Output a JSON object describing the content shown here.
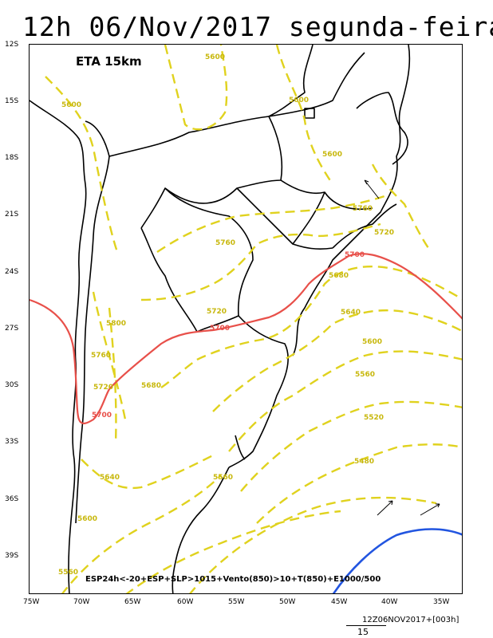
{
  "title": "12h 06/Nov/2017 segunda-feira",
  "model_label": "ETA 15km",
  "lat_ticks": [
    "12S",
    "15S",
    "18S",
    "21S",
    "24S",
    "27S",
    "30S",
    "33S",
    "36S",
    "39S"
  ],
  "lon_ticks": [
    "75W",
    "70W",
    "65W",
    "60W",
    "55W",
    "50W",
    "45W",
    "40W",
    "35W"
  ],
  "caption": "ESP24h<-20+ESP+SLP>1015+Vento(850)>10+T(850)+E1000/500",
  "timestamp": "12Z06NOV2017+[003h]",
  "scale_number": "15",
  "colors": {
    "thickness": "#e0d21e",
    "thickness_label": "#c8b80e",
    "contour_5700": "#e8504a",
    "cold_line": "#2255e0",
    "coast": "#000000"
  },
  "contour_labels": [
    {
      "text": "5600"
    },
    {
      "text": "5600"
    },
    {
      "text": "5600"
    },
    {
      "text": "5600"
    },
    {
      "text": "5760"
    },
    {
      "text": "5760"
    },
    {
      "text": "5720"
    },
    {
      "text": "5720"
    },
    {
      "text": "5800"
    },
    {
      "text": "5760"
    },
    {
      "text": "5720"
    },
    {
      "text": "5680"
    },
    {
      "text": "5700"
    },
    {
      "text": "5700"
    },
    {
      "text": "5700"
    },
    {
      "text": "5680"
    },
    {
      "text": "5640"
    },
    {
      "text": "5600"
    },
    {
      "text": "5560"
    },
    {
      "text": "5520"
    },
    {
      "text": "5480"
    },
    {
      "text": "5640"
    },
    {
      "text": "5600"
    },
    {
      "text": "5560"
    },
    {
      "text": "5560"
    }
  ]
}
